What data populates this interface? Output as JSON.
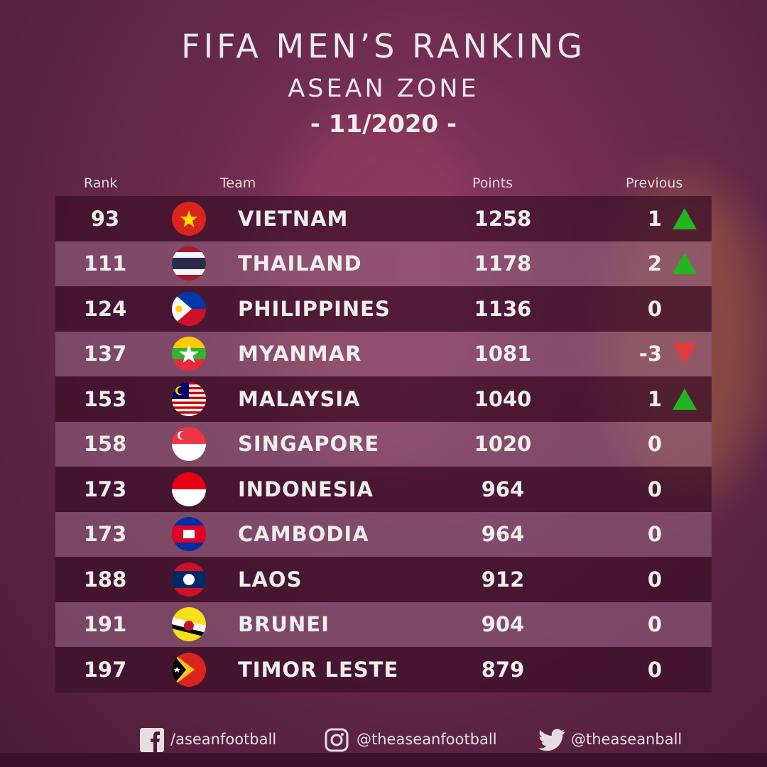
{
  "title": "FIFA MEN’S RANKING",
  "subtitle": "ASEAN ZONE",
  "date": "- 11/2020 -",
  "headers": {
    "rank": "Rank",
    "team": "Team",
    "points": "Points",
    "previous": "Previous"
  },
  "rows": [
    {
      "rank": "93",
      "flag": "vietnam",
      "team": "VIETNAM",
      "points": "1258",
      "previous": "1",
      "trend": "up"
    },
    {
      "rank": "111",
      "flag": "thailand",
      "team": "THAILAND",
      "points": "1178",
      "previous": "2",
      "trend": "up"
    },
    {
      "rank": "124",
      "flag": "philippines",
      "team": "PHILIPPINES",
      "points": "1136",
      "previous": "0",
      "trend": "none"
    },
    {
      "rank": "137",
      "flag": "myanmar",
      "team": "MYANMAR",
      "points": "1081",
      "previous": "-3",
      "trend": "down"
    },
    {
      "rank": "153",
      "flag": "malaysia",
      "team": "MALAYSIA",
      "points": "1040",
      "previous": "1",
      "trend": "up"
    },
    {
      "rank": "158",
      "flag": "singapore",
      "team": "SINGAPORE",
      "points": "1020",
      "previous": "0",
      "trend": "none"
    },
    {
      "rank": "173",
      "flag": "indonesia",
      "team": "INDONESIA",
      "points": "964",
      "previous": "0",
      "trend": "none"
    },
    {
      "rank": "173",
      "flag": "cambodia",
      "team": "CAMBODIA",
      "points": "964",
      "previous": "0",
      "trend": "none"
    },
    {
      "rank": "188",
      "flag": "laos",
      "team": "LAOS",
      "points": "912",
      "previous": "0",
      "trend": "none"
    },
    {
      "rank": "191",
      "flag": "brunei",
      "team": "BRUNEI",
      "points": "904",
      "previous": "0",
      "trend": "none"
    },
    {
      "rank": "197",
      "flag": "timor-leste",
      "team": "TIMOR LESTE",
      "points": "879",
      "previous": "0",
      "trend": "none"
    }
  ],
  "colors": {
    "up": "#22b522",
    "down": "#e03a3a"
  },
  "social": {
    "facebook": "/aseanfootball",
    "instagram": "@theaseanfootball",
    "twitter": "@theaseanball"
  }
}
